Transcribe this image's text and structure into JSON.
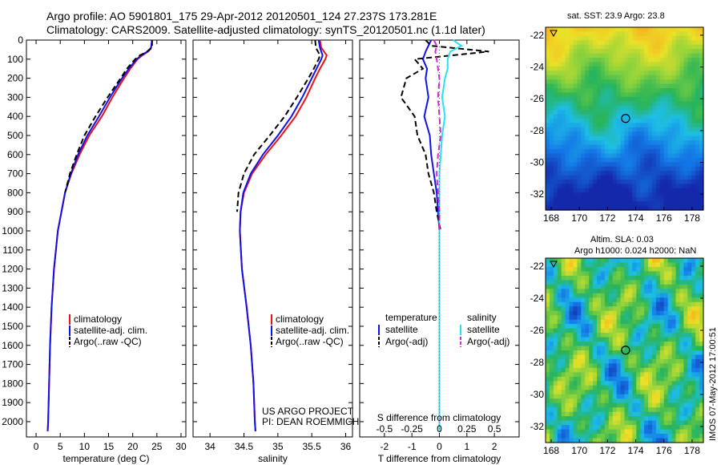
{
  "header": {
    "line1": "Argo profile: AO 5901801_175 29-Apr-2012 20120501_124 27.237S 173.281E",
    "line2": "Climatology: CARS2009. Satellite-adjusted climatology: synTS_20120501.nc (1.1d later)"
  },
  "credits": {
    "project": "US ARGO PROJECT",
    "pi": "PI: DEAN ROEMMICH",
    "stamp": "IMOS 07-May-2012 17:00:51"
  },
  "colors": {
    "climatology": "#ee1111",
    "satellite": "#1111ee",
    "argo": "#000000",
    "salinity_satellite": "#22e5ee",
    "salinity_argo": "#dd22dd"
  },
  "chart_data": [
    {
      "type": "line",
      "id": "temperature",
      "xlabel": "temperature (deg C)",
      "ylabel": "",
      "xlim": [
        -2,
        31
      ],
      "ylim": [
        2080,
        0
      ],
      "x_ticks": [
        0,
        5,
        10,
        15,
        20,
        25,
        30
      ],
      "y_ticks": [
        0,
        100,
        200,
        300,
        400,
        500,
        600,
        700,
        800,
        900,
        1000,
        1100,
        1200,
        1300,
        1400,
        1500,
        1600,
        1700,
        1800,
        1900,
        2000
      ],
      "depth": [
        0,
        40,
        60,
        80,
        100,
        150,
        200,
        300,
        400,
        500,
        600,
        700,
        800,
        1000,
        1200,
        1400,
        1600,
        1800,
        2000,
        2050
      ],
      "series": [
        {
          "name": "climatology",
          "values": [
            24.0,
            23.8,
            23.2,
            22.0,
            21.0,
            19.5,
            18.2,
            15.8,
            13.6,
            11.0,
            9.0,
            7.3,
            6.0,
            4.5,
            3.7,
            3.2,
            2.9,
            2.7,
            2.5,
            2.4
          ]
        },
        {
          "name": "satellite-adj. clim.",
          "values": [
            24.0,
            23.8,
            23.0,
            21.8,
            20.8,
            19.2,
            17.8,
            15.3,
            13.0,
            10.6,
            8.7,
            7.2,
            6.0,
            4.5,
            3.7,
            3.2,
            2.9,
            2.7,
            2.5,
            2.4
          ]
        },
        {
          "name": "Argo(..raw -QC)",
          "values": [
            24.0,
            24.0,
            23.0,
            21.5,
            20.5,
            18.8,
            17.5,
            14.8,
            12.3,
            10.0,
            8.4,
            7.0,
            6.0,
            null,
            null,
            null,
            null,
            null,
            null,
            null
          ]
        }
      ],
      "legend": [
        "climatology",
        "satellite-adj. clim.",
        "Argo(..raw -QC)"
      ]
    },
    {
      "type": "line",
      "id": "salinity",
      "xlabel": "salinity",
      "ylabel": "",
      "xlim": [
        33.75,
        36.1
      ],
      "ylim": [
        2080,
        0
      ],
      "x_ticks": [
        34,
        34.5,
        35,
        35.5,
        36
      ],
      "depth": [
        0,
        40,
        80,
        100,
        150,
        200,
        300,
        400,
        500,
        600,
        700,
        800,
        900,
        1000,
        1200,
        1400,
        1600,
        1800,
        2000,
        2050
      ],
      "series": [
        {
          "name": "climatology",
          "values": [
            35.62,
            35.64,
            35.72,
            35.7,
            35.62,
            35.55,
            35.42,
            35.26,
            35.05,
            34.82,
            34.62,
            34.5,
            34.45,
            34.44,
            34.47,
            34.54,
            34.6,
            34.64,
            34.66,
            34.67
          ]
        },
        {
          "name": "satellite-adj. clim.",
          "values": [
            35.6,
            35.62,
            35.66,
            35.64,
            35.57,
            35.5,
            35.36,
            35.2,
            35.0,
            34.78,
            34.6,
            34.49,
            34.45,
            34.44,
            34.47,
            34.54,
            34.6,
            34.64,
            34.66,
            34.67
          ]
        },
        {
          "name": "Argo(..raw -QC)",
          "values": [
            35.55,
            35.56,
            35.62,
            35.6,
            35.53,
            35.45,
            35.28,
            35.1,
            34.88,
            34.65,
            34.5,
            34.42,
            34.4,
            null,
            null,
            null,
            null,
            null,
            null,
            null
          ]
        }
      ],
      "legend": [
        "climatology",
        "satellite-adj. clim.",
        "Argo(..raw -QC)"
      ]
    },
    {
      "type": "line",
      "id": "difference",
      "xlabel": "T difference from climatology",
      "x2label": "S difference from climatology",
      "xlim": [
        -2.9,
        2.9
      ],
      "ylim": [
        2080,
        0
      ],
      "x_ticks": [
        -2,
        -1,
        0,
        1,
        2
      ],
      "x2_ticks": [
        "-0.5",
        "-0.25",
        "0",
        "0.25",
        "0.5"
      ],
      "depth": [
        0,
        30,
        60,
        100,
        150,
        200,
        300,
        400,
        500,
        600,
        700,
        800,
        900,
        1000,
        1200,
        1400,
        1600,
        1800,
        2000,
        2050
      ],
      "series": [
        {
          "name": "temperature satellite",
          "values": [
            -0.3,
            -0.4,
            -0.5,
            -0.6,
            -0.45,
            -0.5,
            -0.4,
            -0.55,
            -0.35,
            -0.3,
            -0.2,
            -0.1,
            -0.05,
            0,
            0,
            0,
            0,
            0,
            0,
            0
          ]
        },
        {
          "name": "temperature Argo(-adj)",
          "values": [
            -0.5,
            -0.3,
            1.8,
            -0.9,
            -0.6,
            -1.2,
            -1.4,
            -0.9,
            -0.8,
            -0.5,
            -0.4,
            -0.2,
            -0.1,
            0.05,
            null,
            null,
            null,
            null,
            null,
            null
          ]
        },
        {
          "name": "salinity satellite",
          "values": [
            0.5,
            0.8,
            0.4,
            0.3,
            0.3,
            0.2,
            0.1,
            0.2,
            0.1,
            0.05,
            0.0,
            0.0,
            0.0,
            0.0,
            0.0,
            0.0,
            0.0,
            0.0,
            0.0,
            0.0
          ]
        },
        {
          "name": "salinity Argo(-adj)",
          "values": [
            -0.2,
            -0.1,
            -0.15,
            -0.1,
            -0.05,
            0.0,
            -0.05,
            0.0,
            0.05,
            -0.05,
            -0.1,
            -0.05,
            0.0,
            0.0,
            null,
            null,
            null,
            null,
            null,
            null
          ]
        }
      ],
      "legend_headers": [
        "temperature",
        "salinity"
      ],
      "legend": [
        "satellite",
        "Argo(-adj)",
        "satellite",
        "Argo(-adj)"
      ]
    },
    {
      "type": "heatmap",
      "id": "sst-map",
      "title": "sat. SST: 23.9 Argo: 23.8",
      "x_ticks": [
        168,
        170,
        172,
        174,
        176,
        178
      ],
      "y_ticks": [
        -22,
        -24,
        -26,
        -28,
        -30,
        -32
      ],
      "xlim": [
        167.6,
        178.8
      ],
      "ylim": [
        -33,
        -21.5
      ],
      "marker": {
        "lon": 173.281,
        "lat": -27.237
      }
    },
    {
      "type": "heatmap",
      "id": "sla-map",
      "title": "Altim. SLA: 0.03",
      "subtitle": "Argo h1000: 0.024 h2000: NaN",
      "x_ticks": [
        168,
        170,
        172,
        174,
        176,
        178
      ],
      "y_ticks": [
        -22,
        -24,
        -26,
        -28,
        -30,
        -32
      ],
      "xlim": [
        167.6,
        178.8
      ],
      "ylim": [
        -33,
        -21.5
      ],
      "marker": {
        "lon": 173.281,
        "lat": -27.237
      }
    }
  ]
}
